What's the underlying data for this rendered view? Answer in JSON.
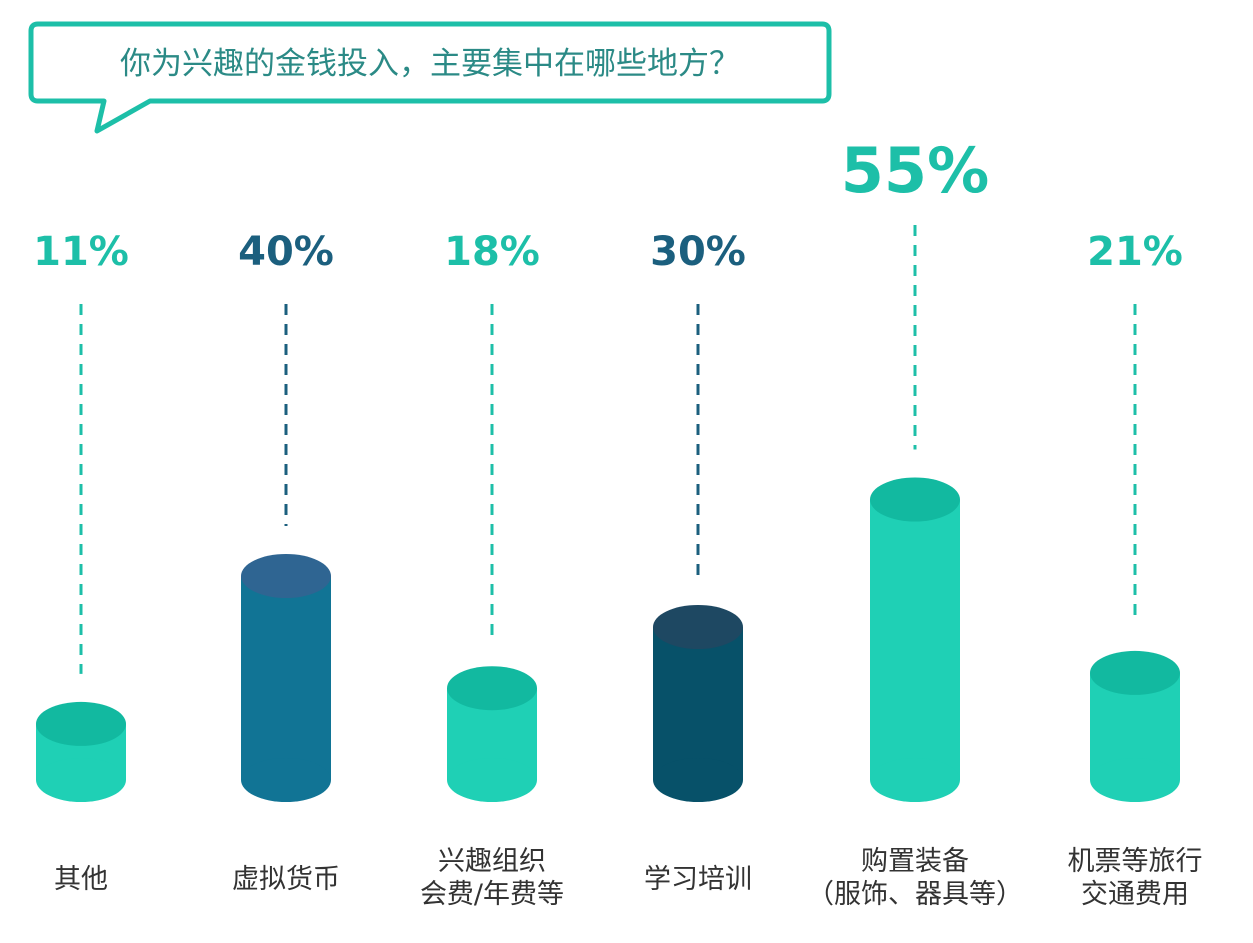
{
  "title": "你为兴趣的金钱投入，主要集中在哪些地方？",
  "colors": {
    "accent": "#19b6a3",
    "teal_body": "#1fd0b5",
    "teal_top": "#12b9a0",
    "blue_body": "#117495",
    "blue_top": "#2f6592",
    "navy_body": "#075169",
    "navy_top": "#1e4862",
    "label_teal": "#1dbfa8",
    "label_navy": "#1b5f7e",
    "category_text": "#333333",
    "bubble_border": "#1dbfa8"
  },
  "chart_data": {
    "type": "bar",
    "title": "你为兴趣的金钱投入，主要集中在哪些地方？",
    "categories": [
      "其他",
      "虚拟货币",
      "兴趣组织\n会费/年费等",
      "学习培训",
      "购置装备\n（服饰、器具等）",
      "机票等旅行\n交通费用"
    ],
    "values": [
      11,
      40,
      18,
      30,
      55,
      21
    ],
    "value_labels": [
      "11%",
      "40%",
      "18%",
      "30%",
      "55%",
      "21%"
    ],
    "unit": "%",
    "ylim": [
      0,
      60
    ],
    "grid": false,
    "legend": "none",
    "bar_style": [
      "teal",
      "blue",
      "teal",
      "navy",
      "teal",
      "teal"
    ]
  }
}
